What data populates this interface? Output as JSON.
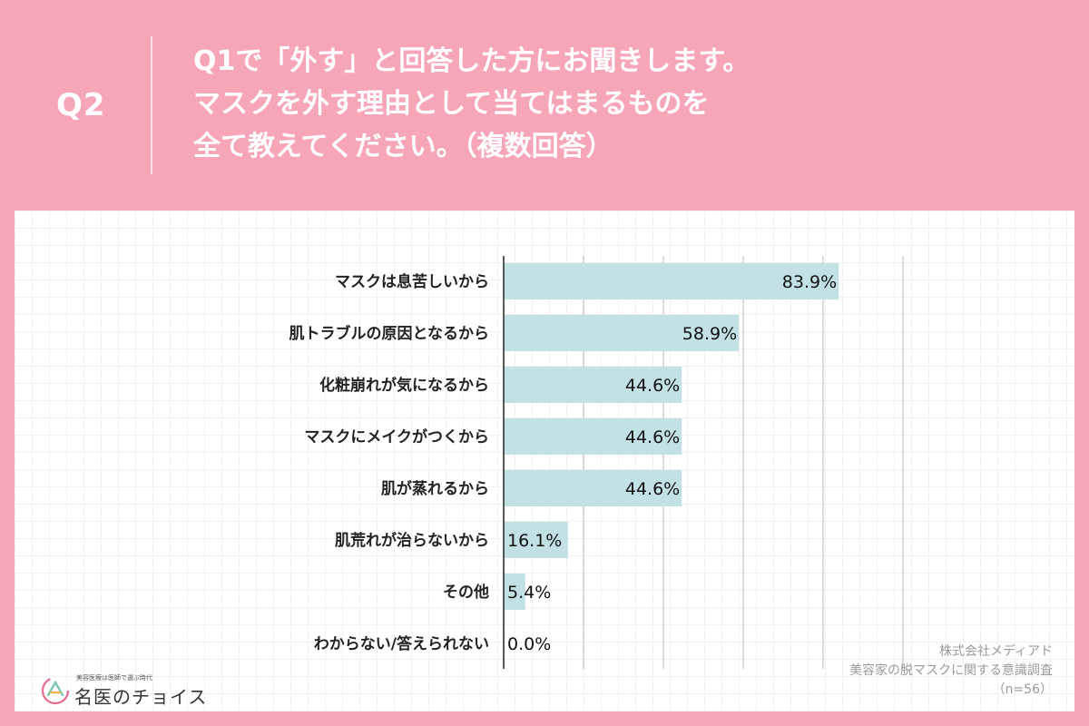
{
  "header": {
    "q_label": "Q2",
    "question_lines": [
      "Q1で「外す」と回答した方にお聞きします。",
      "マスクを外す理由として当てはまるものを",
      "全て教えてください。（複数回答）"
    ]
  },
  "chart_data": {
    "type": "bar",
    "orientation": "horizontal",
    "categories": [
      "マスクは息苦しいから",
      "肌トラブルの原因となるから",
      "化粧崩れが気になるから",
      "マスクにメイクがつくから",
      "肌が蒸れるから",
      "肌荒れが治らないから",
      "その他",
      "わからない/答えられない"
    ],
    "values": [
      83.9,
      58.9,
      44.6,
      44.6,
      44.6,
      16.1,
      5.4,
      0.0
    ],
    "value_labels": [
      "83.9%",
      "58.9%",
      "44.6%",
      "44.6%",
      "44.6%",
      "16.1%",
      "5.4%",
      "0.0%"
    ],
    "xlim": [
      0,
      100
    ],
    "grid": true,
    "bar_color": "#c2e1e5"
  },
  "credit": {
    "company": "株式会社メディアド",
    "survey": "美容家の脱マスクに関する意識調査",
    "sample": "（n=56）"
  },
  "logo": {
    "tagline": "美容医療は医師で選ぶ時代",
    "name": "名医のチョイス"
  },
  "colors": {
    "background": "#f7a6b7",
    "panel": "#ffffff",
    "bar": "#c2e1e5"
  }
}
